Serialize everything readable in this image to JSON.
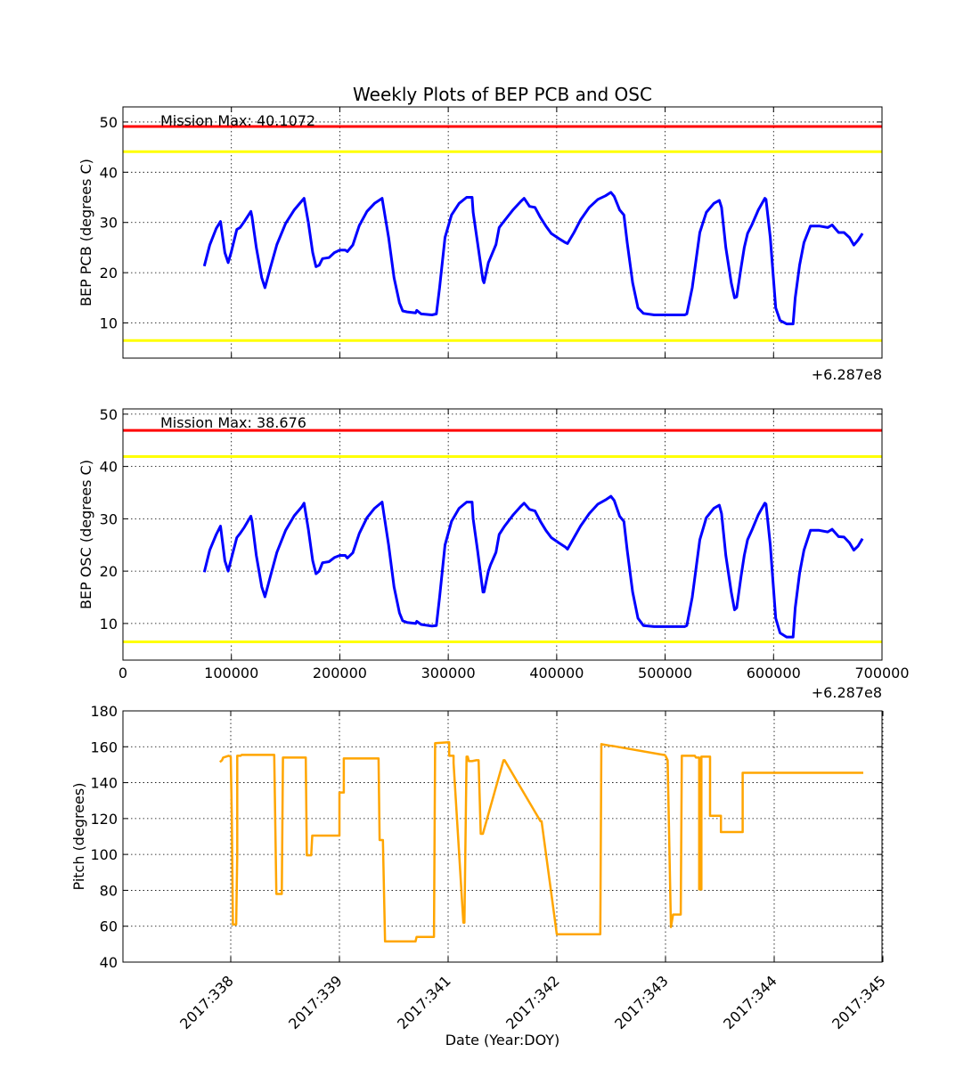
{
  "title": "Weekly Plots of BEP PCB and OSC",
  "chart_data": [
    {
      "type": "line",
      "ylabel": "BEP PCB (degrees C)",
      "xlim": [
        0,
        700000
      ],
      "ylim": [
        3,
        53
      ],
      "yticks": [
        "10",
        "20",
        "30",
        "40",
        "50"
      ],
      "xticks": [
        "100000",
        "200000",
        "300000",
        "400000",
        "500000",
        "600000"
      ],
      "xtick_labels_visible": false,
      "offset_text": "+6.287e8",
      "annotation": "Mission Max: 40.1072",
      "limits": [
        {
          "value": 49.1,
          "color": "#ff0000"
        },
        {
          "value": 44.1,
          "color": "#ffff00"
        },
        {
          "value": 6.5,
          "color": "#ffff00"
        }
      ],
      "line_color": "#0000ff",
      "grid": true,
      "series": [
        {
          "x": [
            75000,
            80000,
            86000,
            90000,
            94000,
            97000,
            100000,
            105000,
            108000,
            112000,
            118000,
            119000,
            123000,
            128000,
            131000,
            136000,
            142000,
            150000,
            158000,
            165000,
            167000,
            171000,
            175000,
            178000,
            181000,
            184000,
            190000,
            195000,
            200000,
            205000,
            207000,
            212000,
            218000,
            225000,
            232000,
            239000,
            240000,
            245000,
            250000,
            255000,
            258000,
            262000,
            270000,
            271000,
            275000,
            285000,
            289000,
            292000,
            297000,
            303000,
            310000,
            317000,
            322000,
            323000,
            327000,
            332000,
            333000,
            337000,
            339000,
            344000,
            347000,
            352000,
            360000,
            367000,
            370000,
            375000,
            380000,
            385000,
            390000,
            395000,
            402000,
            408000,
            410000,
            416000,
            422000,
            430000,
            438000,
            445000,
            450000,
            453000,
            458000,
            462000,
            465000,
            470000,
            475000,
            480000,
            490000,
            505000,
            518000,
            520000,
            525000,
            532000,
            538000,
            545000,
            550000,
            552000,
            556000,
            561000,
            564000,
            566000,
            570000,
            573000,
            576000,
            580000,
            586000,
            592000,
            593000,
            597000,
            602000,
            606000,
            612000,
            618000,
            620000,
            624000,
            628000,
            634000,
            642000,
            650000,
            654000,
            660000,
            665000,
            670000,
            674000,
            678000,
            682000
          ],
          "y": [
            21.3,
            25.5,
            28.8,
            30.2,
            24,
            22,
            24.2,
            28.6,
            29,
            30.2,
            32.2,
            31.2,
            25,
            19,
            17,
            21,
            25.6,
            29.8,
            32.5,
            34.3,
            34.8,
            30,
            24,
            21.2,
            21.5,
            22.8,
            23,
            24,
            24.5,
            24.5,
            24.2,
            25.5,
            29.4,
            32.2,
            33.8,
            34.8,
            33.5,
            27,
            19,
            14,
            12.4,
            12.2,
            12,
            12.5,
            11.8,
            11.6,
            11.8,
            17,
            27,
            31.5,
            33.8,
            35,
            35,
            32,
            26,
            18.5,
            18,
            22,
            23,
            25.6,
            29,
            30.4,
            32.6,
            34.2,
            34.8,
            33.2,
            33,
            31,
            29.3,
            27.8,
            26.8,
            26,
            25.8,
            28,
            30.5,
            33,
            34.6,
            35.3,
            36,
            35.2,
            32.5,
            31.5,
            26,
            18,
            13,
            11.9,
            11.6,
            11.6,
            11.6,
            11.8,
            17,
            28,
            32,
            33.8,
            34.4,
            33,
            25,
            18,
            15,
            15.2,
            21,
            25,
            27.8,
            29.5,
            32.5,
            34.8,
            34.6,
            27,
            13,
            10.5,
            9.8,
            9.8,
            15,
            21.5,
            26,
            29.3,
            29.3,
            29,
            29.5,
            28,
            28,
            27,
            25.5,
            26.5,
            27.8
          ]
        }
      ]
    },
    {
      "type": "line",
      "ylabel": "BEP OSC (degrees C)",
      "xlim": [
        0,
        700000
      ],
      "ylim": [
        3,
        51
      ],
      "yticks": [
        "10",
        "20",
        "30",
        "40",
        "50"
      ],
      "xticks": [
        "0",
        "100000",
        "200000",
        "300000",
        "400000",
        "500000",
        "600000",
        "700000"
      ],
      "offset_text": "+6.287e8",
      "annotation": "Mission Max: 38.676",
      "limits": [
        {
          "value": 46.9,
          "color": "#ff0000"
        },
        {
          "value": 41.9,
          "color": "#ffff00"
        },
        {
          "value": 6.5,
          "color": "#ffff00"
        }
      ],
      "line_color": "#0000ff",
      "grid": true,
      "series": [
        {
          "x": [
            75000,
            80000,
            86000,
            90000,
            94000,
            97000,
            100000,
            105000,
            108000,
            112000,
            118000,
            119000,
            123000,
            128000,
            131000,
            136000,
            142000,
            150000,
            158000,
            165000,
            167000,
            171000,
            175000,
            178000,
            181000,
            184000,
            190000,
            195000,
            200000,
            205000,
            207000,
            212000,
            218000,
            225000,
            232000,
            239000,
            240000,
            245000,
            250000,
            255000,
            258000,
            262000,
            270000,
            271000,
            275000,
            285000,
            289000,
            292000,
            297000,
            303000,
            310000,
            317000,
            322000,
            323000,
            327000,
            332000,
            333000,
            337000,
            339000,
            344000,
            347000,
            352000,
            360000,
            367000,
            370000,
            375000,
            380000,
            385000,
            390000,
            395000,
            402000,
            408000,
            410000,
            416000,
            422000,
            430000,
            438000,
            445000,
            450000,
            453000,
            458000,
            462000,
            465000,
            470000,
            475000,
            480000,
            490000,
            505000,
            518000,
            520000,
            525000,
            532000,
            538000,
            545000,
            550000,
            552000,
            556000,
            561000,
            564000,
            566000,
            570000,
            573000,
            576000,
            580000,
            586000,
            592000,
            593000,
            597000,
            602000,
            606000,
            612000,
            618000,
            620000,
            624000,
            628000,
            634000,
            642000,
            650000,
            654000,
            660000,
            665000,
            670000,
            674000,
            678000,
            682000
          ],
          "y": [
            19.8,
            24,
            27,
            28.6,
            22,
            20,
            22.4,
            26.4,
            27.2,
            28.4,
            30.5,
            29.6,
            23,
            17,
            15.1,
            19,
            23.6,
            27.8,
            30.6,
            32.3,
            33,
            28,
            22,
            19.5,
            20,
            21.6,
            21.8,
            22.6,
            23,
            23,
            22.5,
            23.5,
            27.2,
            30.2,
            32,
            33.2,
            31.8,
            25,
            17,
            12,
            10.5,
            10.2,
            10,
            10.4,
            9.8,
            9.5,
            9.6,
            15,
            25,
            29.5,
            32,
            33.2,
            33.2,
            30,
            24,
            16,
            16,
            20,
            21.2,
            23.6,
            27,
            28.6,
            30.8,
            32.4,
            33,
            31.8,
            31.5,
            29.5,
            27.8,
            26.4,
            25.4,
            24.6,
            24.2,
            26.4,
            28.6,
            31,
            32.8,
            33.6,
            34.3,
            33.5,
            30.5,
            29.5,
            24,
            16,
            11,
            9.6,
            9.4,
            9.4,
            9.4,
            9.6,
            15,
            26,
            30.2,
            32,
            32.6,
            31,
            23,
            16,
            12.6,
            13,
            19,
            23,
            26,
            27.8,
            30.8,
            33,
            32.8,
            25,
            11,
            8.2,
            7.4,
            7.4,
            13,
            19.6,
            24,
            27.8,
            27.8,
            27.5,
            28,
            26.6,
            26.5,
            25.4,
            24,
            24.8,
            26.2
          ]
        }
      ]
    },
    {
      "type": "line",
      "xlabel": "Date (Year:DOY)",
      "ylabel": "Pitch (degrees)",
      "ylim": [
        40,
        180
      ],
      "yticks": [
        "40",
        "60",
        "80",
        "100",
        "120",
        "140",
        "160",
        "180"
      ],
      "xlim": [
        2017.33,
        2017.345
      ],
      "xticks": [
        "2017:338",
        "2017:339",
        "2017:341",
        "2017:342",
        "2017:343",
        "2017:344",
        "2017:345"
      ],
      "line_color": "#ffa500",
      "grid": true,
      "series": [
        {
          "x_units": "days from 2017:338 tick",
          "x": [
            -0.1,
            -0.08,
            -0.07,
            -0.02,
            0.0,
            0.01,
            0.02,
            0.05,
            0.06,
            0.06,
            0.09,
            0.1,
            0.11,
            0.4,
            0.42,
            0.42,
            0.47,
            0.48,
            0.6,
            0.69,
            0.7,
            0.7,
            0.74,
            0.75,
            0.75,
            1.0,
            1.0,
            1.03,
            1.04,
            1.04,
            1.06,
            1.06,
            1.36,
            1.37,
            1.37,
            1.4,
            1.42,
            1.42,
            1.7,
            1.71,
            1.71,
            1.87,
            1.88,
            1.88,
            2.0,
            2.01,
            2.01,
            2.03,
            2.05,
            2.05,
            2.14,
            2.15,
            2.15,
            2.17,
            2.18,
            2.19,
            2.22,
            2.26,
            2.26,
            2.28,
            2.3,
            2.32,
            2.32,
            2.51,
            2.52,
            2.52,
            2.85,
            2.86,
            2.86,
            3.0,
            3.01,
            3.01,
            3.4,
            3.41,
            3.41,
            3.5,
            3.51,
            3.51,
            3.98,
            3.99,
            4.0,
            4.02,
            4.05,
            4.07,
            4.07,
            4.14,
            4.15,
            4.15,
            4.27,
            4.28,
            4.28,
            4.31,
            4.31,
            4.32,
            4.33,
            4.33,
            4.4,
            4.41,
            4.41,
            4.5,
            4.51,
            4.51,
            4.7,
            4.71,
            4.71,
            4.95,
            4.96,
            4.96,
            5.2,
            5.21,
            5.21,
            5.35,
            5.36,
            5.36,
            5.47,
            5.48,
            5.48,
            5.7,
            5.71,
            5.71,
            5.82
          ],
          "y": [
            151.5,
            152.5,
            154,
            155,
            154.5,
            120,
            61,
            61,
            100,
            155,
            155,
            155.5,
            155.5,
            155.5,
            78,
            78,
            78,
            154,
            154,
            154,
            99.5,
            99.5,
            99.5,
            110.5,
            110.5,
            110.5,
            134.5,
            134.5,
            134.5,
            153.5,
            153.5,
            153.5,
            153.5,
            108,
            108,
            108,
            51.5,
            51.5,
            51.5,
            54,
            54,
            54,
            160.5,
            162,
            162.5,
            162.5,
            155,
            155,
            155,
            151,
            62,
            62,
            62,
            154.5,
            154.5,
            152,
            152,
            152.5,
            152.5,
            152.5,
            111.5,
            111.5,
            111.5,
            152.5,
            152.5,
            152.5,
            118.5,
            118.5,
            118.5,
            55.5,
            55.5,
            55.5,
            55.5,
            161.5,
            161.5,
            160.5,
            160.5,
            160.5,
            155.5,
            155.5,
            155,
            152.5,
            59.5,
            66.5,
            66.5,
            66.5,
            155,
            155,
            155,
            154,
            154,
            154,
            80.5,
            80.5,
            80.5,
            154.5,
            154.5,
            154.5,
            121.5,
            121.5,
            121.5,
            112.5,
            112.5,
            112.5,
            145.5,
            145.5,
            145.5,
            145.5,
            145.5,
            145.5,
            145.5,
            145.5,
            145.5,
            145.5,
            145.5,
            145.5,
            145.5,
            145.5,
            145.5,
            145.5,
            145.5
          ]
        }
      ]
    }
  ]
}
